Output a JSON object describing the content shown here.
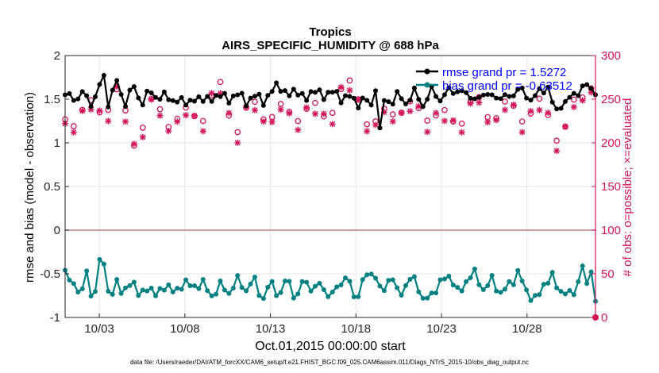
{
  "chart_data": {
    "type": "line",
    "title_line1": "Tropics",
    "title_line2": "AIRS_SPECIFIC_HUMIDITY @ 688 hPa",
    "xlabel": "Oct.01,2015 00:00:00 start",
    "ylabel_left": "rmse and bias (model - observation)",
    "ylabel_right": "# of obs: o=possible; ×=evaluated",
    "x_ticks": [
      {
        "day": 3,
        "label": "10/03"
      },
      {
        "day": 8,
        "label": "10/08"
      },
      {
        "day": 13,
        "label": "10/13"
      },
      {
        "day": 18,
        "label": "10/18"
      },
      {
        "day": 23,
        "label": "10/23"
      },
      {
        "day": 28,
        "label": "10/28"
      }
    ],
    "x_range": [
      1.0,
      32.0
    ],
    "y_left_range": [
      -1,
      2
    ],
    "y_left_ticks": [
      -1,
      -0.5,
      0,
      0.5,
      1,
      1.5,
      2
    ],
    "y_right_range": [
      0,
      300
    ],
    "y_right_ticks": [
      0,
      50,
      100,
      150,
      200,
      250,
      300
    ],
    "series": [
      {
        "name": "rmse grand pr = 1.5272",
        "axis": "left",
        "color": "#000000"
      },
      {
        "name": "bias grand pr = -0.63512",
        "axis": "left",
        "color": "#008080"
      },
      {
        "name": "obs possible",
        "axis": "right",
        "color": "#d4145a",
        "marker": "o"
      },
      {
        "name": "obs evaluated",
        "axis": "right",
        "color": "#d4145a",
        "marker": "*"
      }
    ],
    "rmse_anchors": [
      [
        1.0,
        1.55
      ],
      [
        1.5,
        1.5
      ],
      [
        2.0,
        1.57
      ],
      [
        2.5,
        1.45
      ],
      [
        3.0,
        1.62
      ],
      [
        3.2,
        1.85
      ],
      [
        3.5,
        1.45
      ],
      [
        4.0,
        1.7
      ],
      [
        4.5,
        1.45
      ],
      [
        5.0,
        1.65
      ],
      [
        5.5,
        1.45
      ],
      [
        6.0,
        1.6
      ],
      [
        6.5,
        1.5
      ],
      [
        7.0,
        1.55
      ],
      [
        7.5,
        1.45
      ],
      [
        8.0,
        1.5
      ],
      [
        8.5,
        1.45
      ],
      [
        9.0,
        1.55
      ],
      [
        9.5,
        1.45
      ],
      [
        10.0,
        1.6
      ],
      [
        10.5,
        1.45
      ],
      [
        11.0,
        1.6
      ],
      [
        11.5,
        1.45
      ],
      [
        12.0,
        1.55
      ],
      [
        12.5,
        1.48
      ],
      [
        13.0,
        1.55
      ],
      [
        13.5,
        1.7
      ],
      [
        14.0,
        1.5
      ],
      [
        14.5,
        1.65
      ],
      [
        15.0,
        1.45
      ],
      [
        15.5,
        1.65
      ],
      [
        16.0,
        1.5
      ],
      [
        16.5,
        1.62
      ],
      [
        17.0,
        1.5
      ],
      [
        17.5,
        1.55
      ],
      [
        18.0,
        1.45
      ],
      [
        18.5,
        1.5
      ],
      [
        19.0,
        1.4
      ],
      [
        19.2,
        1.75
      ],
      [
        19.4,
        1.12
      ],
      [
        19.7,
        1.55
      ],
      [
        20.0,
        1.45
      ],
      [
        20.5,
        1.55
      ],
      [
        21.0,
        1.45
      ],
      [
        21.5,
        1.6
      ],
      [
        22.0,
        1.4
      ],
      [
        22.5,
        1.65
      ],
      [
        23.0,
        1.45
      ],
      [
        23.5,
        1.65
      ],
      [
        24.0,
        1.55
      ],
      [
        24.5,
        1.6
      ],
      [
        25.0,
        1.45
      ],
      [
        25.5,
        1.6
      ],
      [
        26.0,
        1.5
      ],
      [
        26.5,
        1.55
      ],
      [
        27.0,
        1.5
      ],
      [
        27.5,
        1.65
      ],
      [
        28.0,
        1.5
      ],
      [
        28.5,
        1.55
      ],
      [
        29.0,
        1.6
      ],
      [
        29.3,
        1.68
      ],
      [
        29.6,
        1.3
      ],
      [
        30.0,
        1.45
      ],
      [
        30.5,
        1.5
      ],
      [
        31.0,
        1.6
      ],
      [
        31.5,
        1.65
      ],
      [
        32.0,
        1.6
      ]
    ],
    "bias_anchors": [
      [
        1.0,
        -0.52
      ],
      [
        1.5,
        -0.6
      ],
      [
        2.0,
        -0.75
      ],
      [
        2.3,
        -0.38
      ],
      [
        2.6,
        -0.9
      ],
      [
        3.0,
        -0.4
      ],
      [
        3.3,
        -0.32
      ],
      [
        3.6,
        -0.85
      ],
      [
        4.0,
        -0.6
      ],
      [
        4.5,
        -0.7
      ],
      [
        5.0,
        -0.6
      ],
      [
        5.5,
        -0.75
      ],
      [
        6.0,
        -0.65
      ],
      [
        6.5,
        -0.75
      ],
      [
        7.0,
        -0.6
      ],
      [
        7.5,
        -0.75
      ],
      [
        8.0,
        -0.55
      ],
      [
        8.5,
        -0.7
      ],
      [
        9.0,
        -0.55
      ],
      [
        9.5,
        -0.8
      ],
      [
        10.0,
        -0.6
      ],
      [
        10.5,
        -0.75
      ],
      [
        11.0,
        -0.55
      ],
      [
        11.5,
        -0.7
      ],
      [
        12.0,
        -0.55
      ],
      [
        12.5,
        -0.8
      ],
      [
        13.0,
        -0.6
      ],
      [
        13.5,
        -0.75
      ],
      [
        14.0,
        -0.55
      ],
      [
        14.5,
        -0.8
      ],
      [
        15.0,
        -0.55
      ],
      [
        15.5,
        -0.7
      ],
      [
        16.0,
        -0.6
      ],
      [
        16.5,
        -0.8
      ],
      [
        17.0,
        -0.6
      ],
      [
        17.5,
        -0.55
      ],
      [
        18.0,
        -0.8
      ],
      [
        18.5,
        -0.55
      ],
      [
        19.0,
        -0.45
      ],
      [
        19.5,
        -0.75
      ],
      [
        20.0,
        -0.5
      ],
      [
        20.5,
        -0.75
      ],
      [
        21.0,
        -0.6
      ],
      [
        21.5,
        -0.55
      ],
      [
        22.0,
        -0.85
      ],
      [
        22.5,
        -0.7
      ],
      [
        23.0,
        -0.6
      ],
      [
        23.5,
        -0.5
      ],
      [
        24.0,
        -0.75
      ],
      [
        24.5,
        -0.55
      ],
      [
        25.0,
        -0.5
      ],
      [
        25.5,
        -0.7
      ],
      [
        26.0,
        -0.55
      ],
      [
        26.5,
        -0.75
      ],
      [
        27.0,
        -0.6
      ],
      [
        27.5,
        -0.5
      ],
      [
        28.0,
        -0.7
      ],
      [
        28.5,
        -0.82
      ],
      [
        29.0,
        -0.6
      ],
      [
        29.5,
        -0.55
      ],
      [
        30.0,
        -0.7
      ],
      [
        30.5,
        -0.75
      ],
      [
        31.0,
        -0.6
      ],
      [
        31.2,
        -0.38
      ],
      [
        31.5,
        -0.65
      ],
      [
        31.8,
        -0.36
      ],
      [
        32.0,
        -0.85
      ]
    ],
    "obs_possible_anchors": [
      [
        1.0,
        227
      ],
      [
        2.0,
        235
      ],
      [
        3.0,
        240
      ],
      [
        4.0,
        255
      ],
      [
        5.0,
        205
      ],
      [
        6.0,
        240
      ],
      [
        7.0,
        230
      ],
      [
        8.0,
        228
      ],
      [
        9.0,
        235
      ],
      [
        10.0,
        262
      ],
      [
        11.0,
        220
      ],
      [
        12.0,
        240
      ],
      [
        13.0,
        235
      ],
      [
        14.0,
        232
      ],
      [
        15.0,
        240
      ],
      [
        16.0,
        230
      ],
      [
        17.0,
        255
      ],
      [
        18.0,
        265
      ],
      [
        19.0,
        210
      ],
      [
        20.0,
        245
      ],
      [
        21.0,
        235
      ],
      [
        22.0,
        240
      ],
      [
        23.0,
        225
      ],
      [
        24.0,
        230
      ],
      [
        25.0,
        245
      ],
      [
        26.0,
        235
      ],
      [
        27.0,
        238
      ],
      [
        28.0,
        235
      ],
      [
        29.0,
        240
      ],
      [
        30.0,
        205
      ],
      [
        31.0,
        250
      ],
      [
        32.0,
        280
      ]
    ],
    "obs_eval_offset": -5
  },
  "footer": {
    "data_file": "data file: /Users/raeder/DAI/ATM_forcXX/CAM6_setup/f.e21.FHIST_BGC.f09_025.CAM6assim.011/Diags_NTrS_2015-10/obs_diag_output.nc"
  }
}
